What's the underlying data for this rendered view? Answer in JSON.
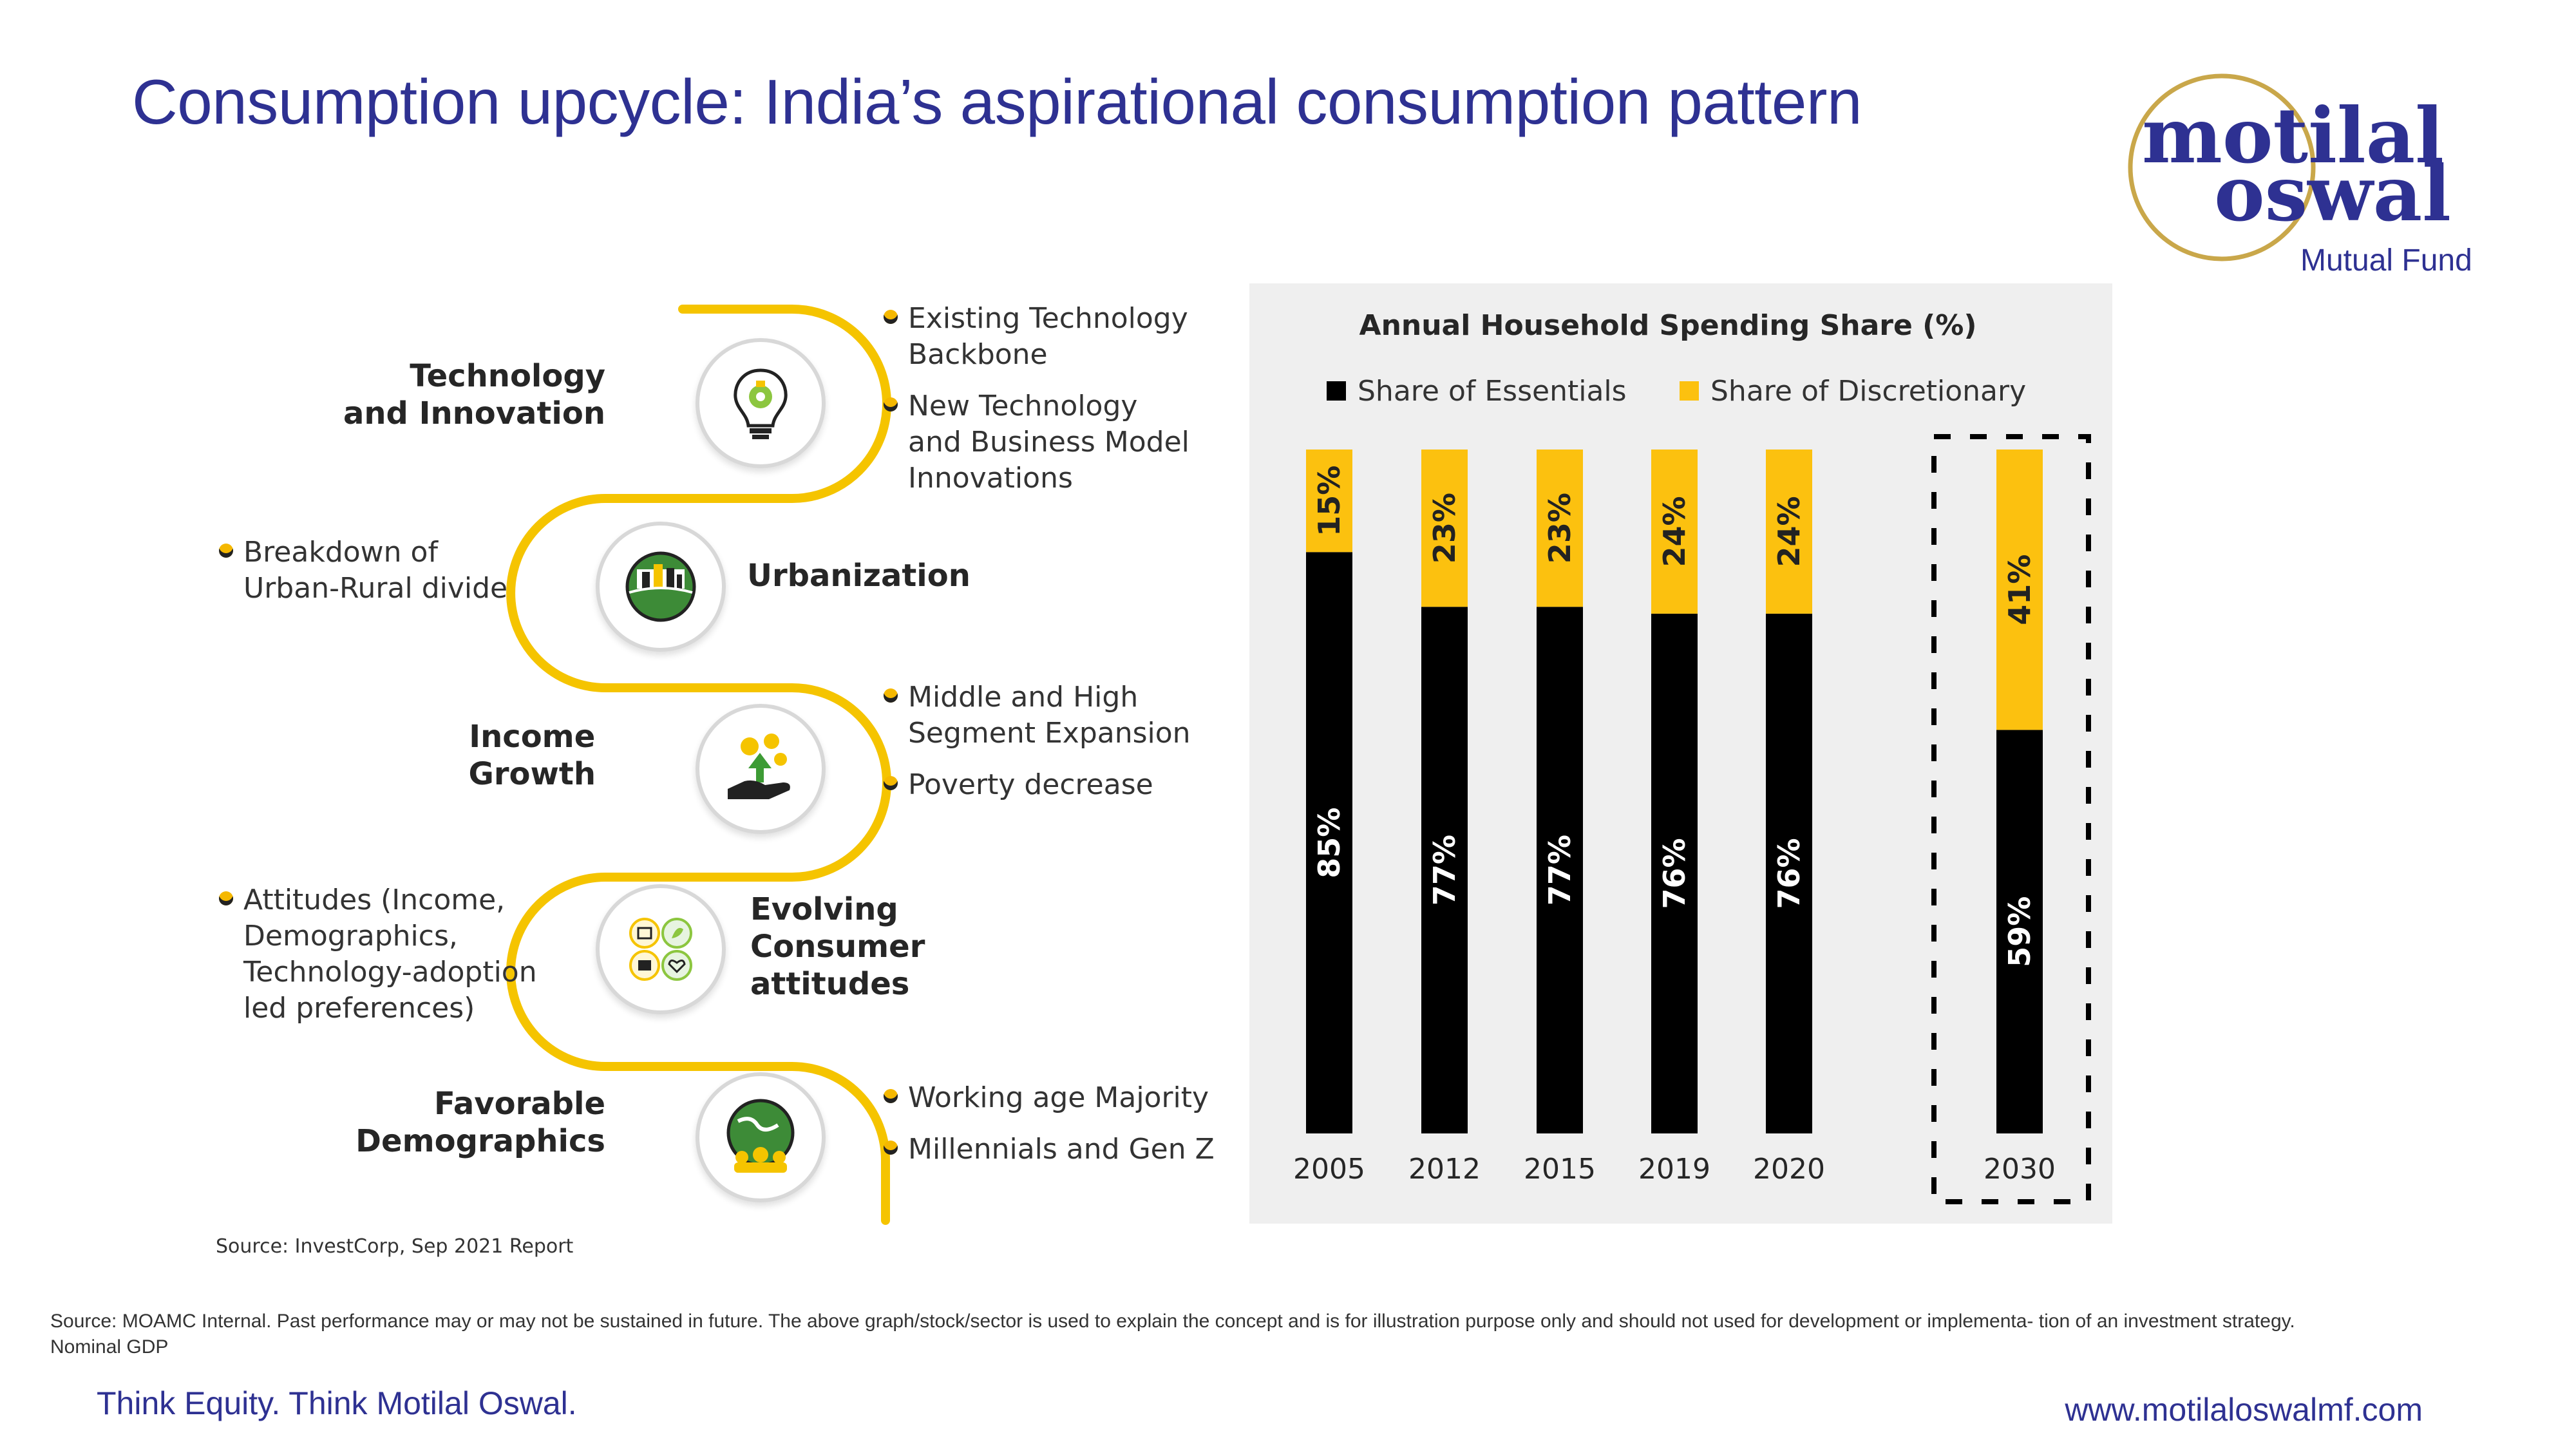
{
  "slide": {
    "title": "Consumption upcycle: India’s aspirational consumption pattern",
    "source_small": "Source: InvestCorp, Sep 2021 Report",
    "disclaimer": "Source: MOAMC Internal. Past performance may or may not be sustained in future. The above graph/stock/sector is used to explain the concept and is for illustration purpose only and should not used for development or implementa- tion of an investment strategy. Nominal GDP",
    "tagline": "Think Equity. Think Motilal Oswal.",
    "website": "www.motilaloswalmf.com"
  },
  "logo": {
    "line1": "motilal",
    "line2": "oswal",
    "line3": "Mutual Fund"
  },
  "drivers": [
    {
      "title": [
        "Technology",
        "and Innovation"
      ],
      "icon": "bulb-gear-icon",
      "bullets": [
        [
          "Existing Technology",
          "Backbone"
        ],
        [
          "New Technology",
          "and Business Model",
          "Innovations"
        ]
      ]
    },
    {
      "title": [
        "Urbanization"
      ],
      "icon": "city-globe-icon",
      "bullets": [
        [
          "Breakdown of",
          "Urban-Rural divide"
        ]
      ]
    },
    {
      "title": [
        "Income",
        "Growth"
      ],
      "icon": "hand-coins-icon",
      "bullets": [
        [
          "Middle and High",
          "Segment Expansion"
        ],
        [
          "Poverty decrease"
        ]
      ]
    },
    {
      "title": [
        "Evolving",
        "Consumer",
        "attitudes"
      ],
      "icon": "attitudes-grid-icon",
      "bullets": [
        [
          "Attitudes (Income,",
          "Demographics,",
          "Technology-adoption",
          "led preferences)"
        ]
      ]
    },
    {
      "title": [
        "Favorable",
        "Demographics"
      ],
      "icon": "people-globe-icon",
      "bullets": [
        [
          "Working age Majority"
        ],
        [
          "Millennials and Gen Z"
        ]
      ]
    }
  ],
  "colors": {
    "title_blue": "#2e3192",
    "essentials": "#000000",
    "discretionary": "#fcc10f",
    "path_yellow": "#f5c400"
  },
  "chart_data": {
    "type": "bar",
    "stacked": true,
    "title": "Annual Household Spending Share (%)",
    "categories": [
      "2005",
      "2012",
      "2015",
      "2019",
      "2020",
      "2030"
    ],
    "series": [
      {
        "name": "Share of Essentials",
        "values": [
          85,
          77,
          77,
          76,
          76,
          59
        ],
        "labels": [
          "85%",
          "77%",
          "77%",
          "76%",
          "76%",
          "59%"
        ]
      },
      {
        "name": "Share of Discretionary",
        "values": [
          15,
          23,
          23,
          24,
          24,
          41
        ],
        "labels": [
          "15%",
          "23%",
          "23%",
          "24%",
          "24%",
          "41%"
        ]
      }
    ],
    "ylim": [
      0,
      100
    ],
    "highlight_category": "2030",
    "legend_position": "top",
    "grid": false
  }
}
